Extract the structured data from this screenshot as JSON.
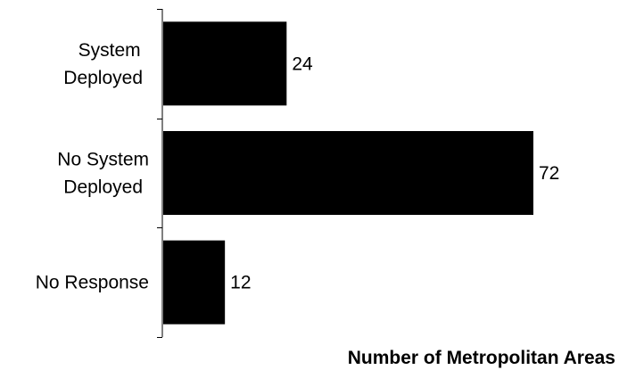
{
  "chart_data": {
    "type": "bar",
    "orientation": "horizontal",
    "categories": [
      [
        "System",
        "Deployed"
      ],
      [
        "No System",
        "Deployed"
      ],
      [
        "No Response"
      ]
    ],
    "values": [
      24,
      72,
      12
    ],
    "data_labels": [
      "24",
      "72",
      "12"
    ],
    "title": "",
    "xlabel": "Number of Metropolitan Areas",
    "ylabel": "",
    "xlim": [
      0,
      72
    ],
    "grid": false,
    "legend": "none",
    "bar_color": "#000000",
    "axis_color": "#000000"
  }
}
